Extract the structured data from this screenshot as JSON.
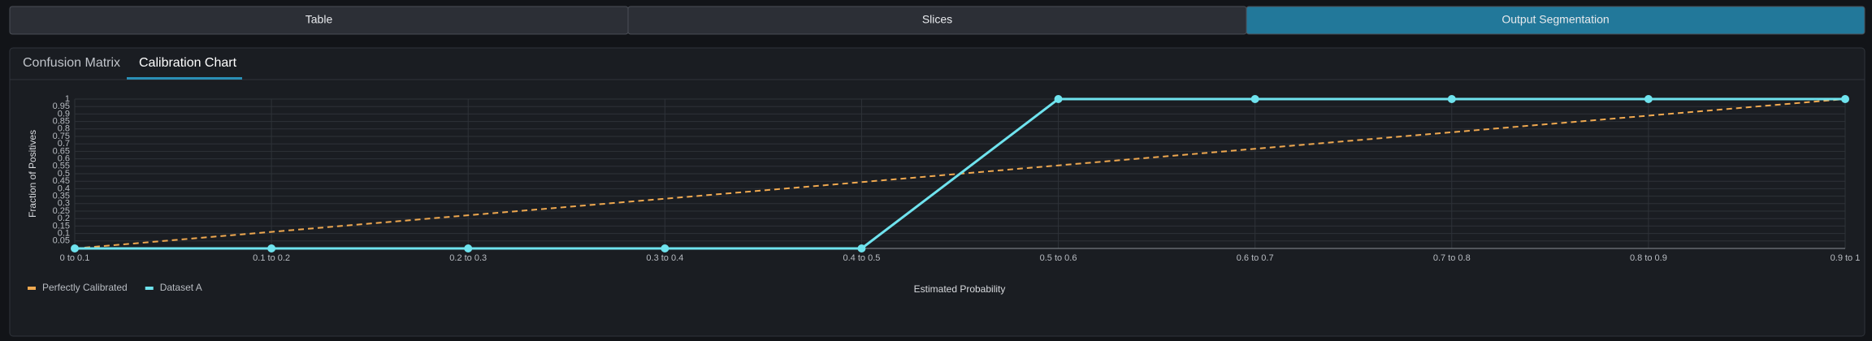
{
  "tabs": [
    "Table",
    "Slices",
    "Output Segmentation"
  ],
  "active_tab": 2,
  "subtabs": [
    "Confusion Matrix",
    "Calibration Chart"
  ],
  "active_subtab": 1,
  "chart_data": {
    "type": "line",
    "xlabel": "Estimated Probability",
    "ylabel": "Fraction of Positives",
    "categories": [
      "0 to 0.1",
      "0.1 to 0.2",
      "0.2 to 0.3",
      "0.3 to 0.4",
      "0.4 to 0.5",
      "0.5 to 0.6",
      "0.6 to 0.7",
      "0.7 to 0.8",
      "0.8 to 0.9",
      "0.9 to 1"
    ],
    "series": [
      {
        "name": "Perfectly Calibrated",
        "color": "#f0a950",
        "dashed": true,
        "markers": false,
        "values": [
          0,
          0.111,
          0.222,
          0.333,
          0.444,
          0.556,
          0.667,
          0.778,
          0.889,
          1
        ]
      },
      {
        "name": "Dataset A",
        "color": "#6fe3ee",
        "dashed": false,
        "markers": true,
        "values": [
          0,
          0,
          0,
          0,
          0,
          1,
          1,
          1,
          1,
          1
        ]
      }
    ],
    "ylim": [
      0,
      1
    ],
    "yticks": [
      0.05,
      0.1,
      0.15,
      0.2,
      0.25,
      0.3,
      0.35,
      0.4,
      0.45,
      0.5,
      0.55,
      0.6,
      0.65,
      0.7,
      0.75,
      0.8,
      0.85,
      0.9,
      0.95,
      1
    ],
    "grid": true,
    "legend": "bottom-left"
  }
}
